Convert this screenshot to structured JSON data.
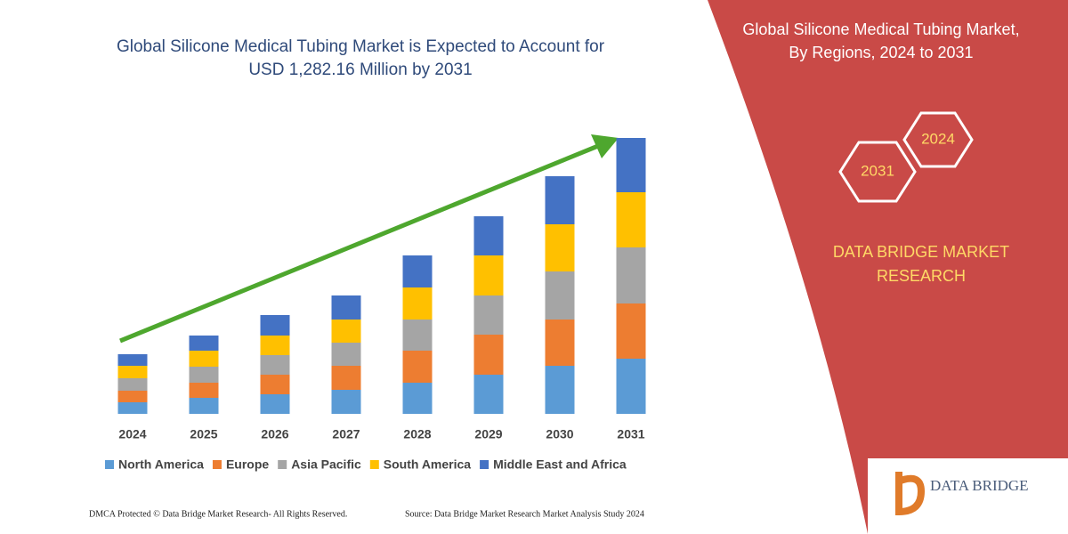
{
  "chart_data": {
    "type": "stacked_bar",
    "title": "Global Silicone Medical Tubing Market is Expected to Account for USD 1,282.16 Million by 2031",
    "categories": [
      "2024",
      "2025",
      "2026",
      "2027",
      "2028",
      "2029",
      "2030",
      "2031"
    ],
    "series": [
      {
        "name": "North America",
        "color": "#5b9bd5",
        "values": [
          13,
          18,
          22,
          27,
          35,
          44,
          54,
          62
        ]
      },
      {
        "name": "Europe",
        "color": "#ed7d31",
        "values": [
          13,
          17,
          22,
          27,
          36,
          45,
          52,
          62
        ]
      },
      {
        "name": "Asia Pacific",
        "color": "#a5a5a5",
        "values": [
          14,
          18,
          22,
          26,
          35,
          44,
          54,
          63
        ]
      },
      {
        "name": "South America",
        "color": "#ffc000",
        "values": [
          14,
          18,
          22,
          26,
          36,
          45,
          53,
          62
        ]
      },
      {
        "name": "Middle East and Africa",
        "color": "#4472c4",
        "values": [
          13,
          17,
          23,
          27,
          36,
          44,
          54,
          61
        ]
      }
    ],
    "legend": "bottom",
    "grid": false
  },
  "panel": {
    "title": "Global Silicone Medical Tubing Market, By Regions, 2024 to 2031",
    "hexagons": [
      "2031",
      "2024"
    ],
    "brand": "DATA BRIDGE MARKET RESEARCH"
  },
  "footer": {
    "left": "DMCA Protected © Data Bridge Market Research- All Rights Reserved.",
    "right": "Source: Data Bridge Market Research Market Analysis Study 2024"
  },
  "logo": "DATA BRIDGE"
}
